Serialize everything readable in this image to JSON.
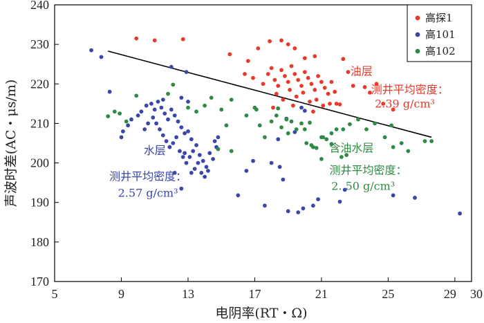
{
  "chart_data": {
    "type": "scatter",
    "xlabel": "电阴率(RT・Ω)",
    "ylabel": "声波时差(AC・μs/m)",
    "xlim": [
      5,
      30
    ],
    "ylim": [
      170,
      240
    ],
    "x_ticks": [
      5,
      9,
      13,
      17,
      21,
      25,
      29,
      30
    ],
    "y_ticks": [
      170,
      180,
      190,
      200,
      210,
      220,
      230,
      240
    ],
    "legend_position": "top-right",
    "series": [
      {
        "name": "高探1",
        "color": "#e8392a",
        "points": [
          [
            9.9,
            231.5
          ],
          [
            11.0,
            231.0
          ],
          [
            12.7,
            231.3
          ],
          [
            15.5,
            227.5
          ],
          [
            16.6,
            225.8
          ],
          [
            17.2,
            229.0
          ],
          [
            17.9,
            230.8
          ],
          [
            18.6,
            231.0
          ],
          [
            19.0,
            230.0
          ],
          [
            19.4,
            229.0
          ],
          [
            20.0,
            226.5
          ],
          [
            20.6,
            227.0
          ],
          [
            22.3,
            226.3
          ],
          [
            22.6,
            223.0
          ],
          [
            22.9,
            219.5
          ],
          [
            23.6,
            219.2
          ],
          [
            23.9,
            217.8
          ],
          [
            24.3,
            220.0
          ],
          [
            24.7,
            215.0
          ],
          [
            25.3,
            213.5
          ],
          [
            16.4,
            222.5
          ],
          [
            16.9,
            221.5
          ],
          [
            17.5,
            220.0
          ],
          [
            17.8,
            222.5
          ],
          [
            18.0,
            224.0
          ],
          [
            18.2,
            221.0
          ],
          [
            18.4,
            219.5
          ],
          [
            18.6,
            223.5
          ],
          [
            18.8,
            222.0
          ],
          [
            19.0,
            220.5
          ],
          [
            19.2,
            224.5
          ],
          [
            19.4,
            222.5
          ],
          [
            19.6,
            221.0
          ],
          [
            19.8,
            219.5
          ],
          [
            20.0,
            223.0
          ],
          [
            20.2,
            221.5
          ],
          [
            20.4,
            220.0
          ],
          [
            20.6,
            218.5
          ],
          [
            20.8,
            222.0
          ],
          [
            21.0,
            220.5
          ],
          [
            21.2,
            219.0
          ],
          [
            21.4,
            217.5
          ],
          [
            21.6,
            220.5
          ],
          [
            21.8,
            218.0
          ],
          [
            18.3,
            217.5
          ],
          [
            18.7,
            216.0
          ],
          [
            19.1,
            218.5
          ],
          [
            19.5,
            216.8
          ],
          [
            19.9,
            217.8
          ],
          [
            20.3,
            215.5
          ],
          [
            20.7,
            216.0
          ],
          [
            21.1,
            214.5
          ],
          [
            21.5,
            215.0
          ],
          [
            21.9,
            215.0
          ],
          [
            22.1,
            214.8
          ],
          [
            18.1,
            214.0
          ],
          [
            19.3,
            214.5
          ],
          [
            20.5,
            213.0
          ]
        ]
      },
      {
        "name": "高101",
        "color": "#3a46a8",
        "points": [
          [
            7.2,
            228.5
          ],
          [
            7.8,
            226.8
          ],
          [
            12.0,
            224.3
          ],
          [
            12.9,
            223.0
          ],
          [
            8.3,
            218.0
          ],
          [
            9.4,
            209.5
          ],
          [
            9.1,
            208.0
          ],
          [
            9.0,
            206.5
          ],
          [
            9.6,
            211.0
          ],
          [
            10.0,
            212.0
          ],
          [
            10.2,
            213.0
          ],
          [
            10.5,
            214.5
          ],
          [
            10.8,
            215.0
          ],
          [
            11.0,
            213.5
          ],
          [
            11.2,
            215.5
          ],
          [
            11.4,
            214.0
          ],
          [
            11.6,
            212.5
          ],
          [
            11.8,
            211.0
          ],
          [
            12.0,
            213.5
          ],
          [
            12.2,
            212.0
          ],
          [
            12.4,
            210.5
          ],
          [
            12.6,
            209.0
          ],
          [
            12.8,
            207.5
          ],
          [
            13.0,
            208.0
          ],
          [
            10.4,
            208.5
          ],
          [
            10.6,
            210.0
          ],
          [
            10.9,
            211.5
          ],
          [
            11.1,
            210.0
          ],
          [
            11.3,
            208.5
          ],
          [
            11.5,
            207.0
          ],
          [
            11.7,
            205.5
          ],
          [
            11.9,
            204.0
          ],
          [
            12.1,
            205.0
          ],
          [
            12.3,
            206.5
          ],
          [
            12.5,
            203.0
          ],
          [
            12.7,
            201.5
          ],
          [
            12.9,
            200.0
          ],
          [
            13.1,
            201.5
          ],
          [
            13.3,
            203.0
          ],
          [
            13.5,
            204.5
          ],
          [
            13.7,
            202.0
          ],
          [
            13.9,
            200.5
          ],
          [
            14.1,
            199.0
          ],
          [
            14.3,
            202.5
          ],
          [
            14.5,
            201.0
          ],
          [
            14.7,
            204.0
          ],
          [
            13.2,
            206.0
          ],
          [
            13.4,
            198.5
          ],
          [
            13.6,
            200.0
          ],
          [
            13.8,
            197.5
          ],
          [
            14.0,
            196.5
          ],
          [
            14.2,
            198.0
          ],
          [
            14.6,
            205.5
          ],
          [
            14.8,
            206.5
          ],
          [
            13.0,
            215.5
          ],
          [
            12.6,
            216.5
          ],
          [
            11.5,
            216.0
          ],
          [
            12.8,
            202.5
          ],
          [
            13.2,
            197.5
          ],
          [
            12.2,
            197.5
          ],
          [
            12.6,
            193.5
          ],
          [
            16.0,
            191.8
          ],
          [
            16.9,
            200.5
          ],
          [
            16.5,
            198.0
          ],
          [
            17.6,
            189.2
          ],
          [
            18.0,
            200.0
          ],
          [
            18.5,
            199.0
          ],
          [
            18.7,
            195.8
          ],
          [
            19.0,
            187.8
          ],
          [
            19.6,
            187.5
          ],
          [
            19.9,
            188.5
          ],
          [
            20.5,
            189.2
          ],
          [
            20.8,
            190.8
          ],
          [
            22.1,
            190.2
          ],
          [
            22.4,
            193.2
          ],
          [
            25.3,
            191.8
          ],
          [
            26.6,
            191.2
          ],
          [
            29.3,
            187.2
          ],
          [
            18.9,
            211.2
          ],
          [
            19.4,
            207.8
          ],
          [
            19.8,
            214.0
          ],
          [
            18.4,
            206.0
          ],
          [
            20.0,
            213.2
          ]
        ]
      },
      {
        "name": "高102",
        "color": "#2f8a45",
        "points": [
          [
            8.2,
            211.8
          ],
          [
            8.6,
            213.0
          ],
          [
            8.9,
            212.5
          ],
          [
            9.3,
            210.5
          ],
          [
            9.9,
            217.0
          ],
          [
            11.8,
            217.5
          ],
          [
            12.1,
            219.8
          ],
          [
            13.0,
            214.0
          ],
          [
            13.5,
            213.0
          ],
          [
            14.0,
            214.5
          ],
          [
            14.4,
            216.5
          ],
          [
            15.0,
            213.5
          ],
          [
            15.3,
            209.5
          ],
          [
            15.6,
            216.0
          ],
          [
            14.8,
            203.5
          ],
          [
            15.6,
            203.0
          ],
          [
            17.0,
            214.0
          ],
          [
            17.3,
            209.5
          ],
          [
            17.6,
            206.5
          ],
          [
            18.0,
            210.5
          ],
          [
            18.3,
            212.0
          ],
          [
            18.6,
            209.0
          ],
          [
            18.9,
            211.0
          ],
          [
            19.2,
            210.5
          ],
          [
            19.5,
            208.5
          ],
          [
            19.8,
            210.0
          ],
          [
            20.1,
            205.0
          ],
          [
            20.4,
            204.5
          ],
          [
            20.7,
            203.8
          ],
          [
            21.0,
            206.5
          ],
          [
            21.3,
            206.0
          ],
          [
            21.6,
            207.5
          ],
          [
            21.9,
            208.5
          ],
          [
            20.0,
            208.5
          ],
          [
            20.3,
            210.2
          ],
          [
            22.3,
            208.5
          ],
          [
            22.7,
            209.8
          ],
          [
            23.2,
            211.0
          ],
          [
            23.7,
            208.5
          ],
          [
            24.2,
            210.0
          ],
          [
            24.8,
            206.5
          ],
          [
            25.2,
            209.5
          ],
          [
            25.8,
            205.0
          ],
          [
            25.3,
            204.0
          ],
          [
            26.2,
            203.0
          ],
          [
            27.2,
            205.5
          ],
          [
            27.6,
            205.5
          ],
          [
            16.5,
            212.0
          ],
          [
            17.1,
            213.5
          ],
          [
            18.4,
            213.8
          ],
          [
            19.0,
            207.5
          ],
          [
            21.0,
            201.0
          ],
          [
            20.5,
            204.0
          ],
          [
            21.6,
            204.8
          ],
          [
            22.2,
            201.5
          ],
          [
            22.5,
            202.0
          ],
          [
            21.1,
            206.5
          ]
        ]
      }
    ],
    "trendline": [
      [
        8.2,
        228.3
      ],
      [
        27.6,
        206.5
      ]
    ],
    "annotations": [
      {
        "text": "油层",
        "color": "#e8392a",
        "x": 23.4,
        "y": 222.2
      },
      {
        "text": "测井平均密度：",
        "color": "#e8392a",
        "x": 26.3,
        "y": 217.6
      },
      {
        "text": "2.39 g/cm³",
        "color": "#e8392a",
        "x": 26.0,
        "y": 214.0
      },
      {
        "text": "水层",
        "color": "#3a46a8",
        "x": 11.0,
        "y": 202.2
      },
      {
        "text": "测井平均密度：",
        "color": "#3a46a8",
        "x": 10.6,
        "y": 195.6
      },
      {
        "text": "2.57 g/cm³",
        "color": "#3a46a8",
        "x": 10.6,
        "y": 191.4
      },
      {
        "text": "含油水层",
        "color": "#2f8a45",
        "x": 22.8,
        "y": 202.8
      },
      {
        "text": "测井平均密度：",
        "color": "#2f8a45",
        "x": 23.8,
        "y": 197.2
      },
      {
        "text": "2. 50 g/cm³",
        "color": "#2f8a45",
        "x": 23.5,
        "y": 193.2
      }
    ]
  }
}
